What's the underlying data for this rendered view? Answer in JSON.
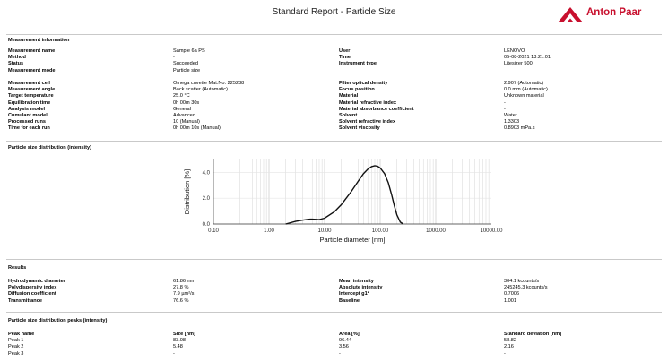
{
  "header": {
    "title": "Standard Report - Particle Size",
    "brand": "Anton Paar"
  },
  "measurement_info": {
    "title": "Measurement information",
    "left_group1": [
      {
        "label": "Measurement name",
        "value": "Sample 6a PS"
      },
      {
        "label": "Method",
        "value": "-"
      },
      {
        "label": "Status",
        "value": "Succeeded"
      },
      {
        "label": "Measurement mode",
        "value": "Particle size"
      }
    ],
    "left_group2": [
      {
        "label": "Measurement cell",
        "value": "Omega cuvette Mat.No. 225288"
      },
      {
        "label": "Measurement angle",
        "value": "Back scatter (Automatic)"
      },
      {
        "label": "Target temperature",
        "value": "25.0 °C"
      },
      {
        "label": "Equilibration time",
        "value": "0h 00m 30s"
      },
      {
        "label": "Analysis model",
        "value": "General"
      },
      {
        "label": "Cumulant model",
        "value": "Advanced"
      },
      {
        "label": "Processed runs",
        "value": "10 (Manual)"
      },
      {
        "label": "Time for each run",
        "value": "0h 00m 10s (Manual)"
      }
    ],
    "right_group1": [
      {
        "label": "User",
        "value": "LENOVO"
      },
      {
        "label": "Time",
        "value": "05-08-2021 13:21:01"
      },
      {
        "label": "Instrument type",
        "value": "Litesizer 500"
      }
    ],
    "right_group2": [
      {
        "label": "Filter optical density",
        "value": "2.907 (Automatic)"
      },
      {
        "label": "Focus position",
        "value": "0.0 mm (Automatic)"
      },
      {
        "label": "Material",
        "value": "Unknown material"
      },
      {
        "label": "Material refractive index",
        "value": "-"
      },
      {
        "label": "Material absorbance coefficient",
        "value": "-"
      },
      {
        "label": "Solvent",
        "value": "Water"
      },
      {
        "label": "Solvent refractive index",
        "value": "1.3303"
      },
      {
        "label": "Solvent viscosity",
        "value": "0.8903 mPa.s"
      }
    ]
  },
  "chart_section": {
    "title": "Particle size distribution (intensity)"
  },
  "chart_data": {
    "type": "line",
    "xlabel": "Particle diameter [nm]",
    "ylabel": "Distribution [%]",
    "x_scale": "log",
    "xlim": [
      0.1,
      10000
    ],
    "ylim": [
      0,
      5
    ],
    "x_ticks": [
      "0.10",
      "1.00",
      "10.00",
      "100.00",
      "1000.00",
      "10000.00"
    ],
    "y_ticks": [
      "0.0",
      "2.0",
      "4.0"
    ],
    "series": [
      {
        "x": [
          2.0,
          3.0,
          4.0,
          5.0,
          5.5,
          6.0,
          7.0,
          8.0,
          10,
          15,
          20,
          30,
          40,
          50,
          60,
          70,
          80,
          90,
          100,
          120,
          140,
          160,
          180,
          200,
          230,
          260
        ],
        "values": [
          0.0,
          0.2,
          0.3,
          0.36,
          0.38,
          0.38,
          0.36,
          0.34,
          0.45,
          0.95,
          1.5,
          2.5,
          3.3,
          3.9,
          4.25,
          4.45,
          4.52,
          4.48,
          4.35,
          3.9,
          3.2,
          2.3,
          1.4,
          0.7,
          0.15,
          0.0
        ]
      }
    ]
  },
  "results": {
    "title": "Results",
    "left": [
      {
        "label": "Hydrodynamic diameter",
        "value": "61.86 nm"
      },
      {
        "label": "Polydispersity index",
        "value": "27.8 %"
      },
      {
        "label": "Diffusion coefficient",
        "value": "7.9 µm²/s"
      },
      {
        "label": "Transmittance",
        "value": "76.6 %"
      }
    ],
    "right": [
      {
        "label": "Mean intensity",
        "value": "304.1 kcounts/s"
      },
      {
        "label": "Absolute intensity",
        "value": "245245.3 kcounts/s"
      },
      {
        "label": "Intercept g1²",
        "value": "0.7006"
      },
      {
        "label": "Baseline",
        "value": "1.001"
      }
    ]
  },
  "peaks": {
    "title": "Particle size distribution peaks (intensity)",
    "headers": [
      "Peak name",
      "Size [nm]",
      "Area [%]",
      "Standard deviation [nm]"
    ],
    "rows": [
      [
        "Peak 1",
        "83.08",
        "96.44",
        "58.82"
      ],
      [
        "Peak 2",
        "5.48",
        "3.56",
        "2.16"
      ],
      [
        "Peak 3",
        "-",
        "-",
        "-"
      ]
    ]
  }
}
